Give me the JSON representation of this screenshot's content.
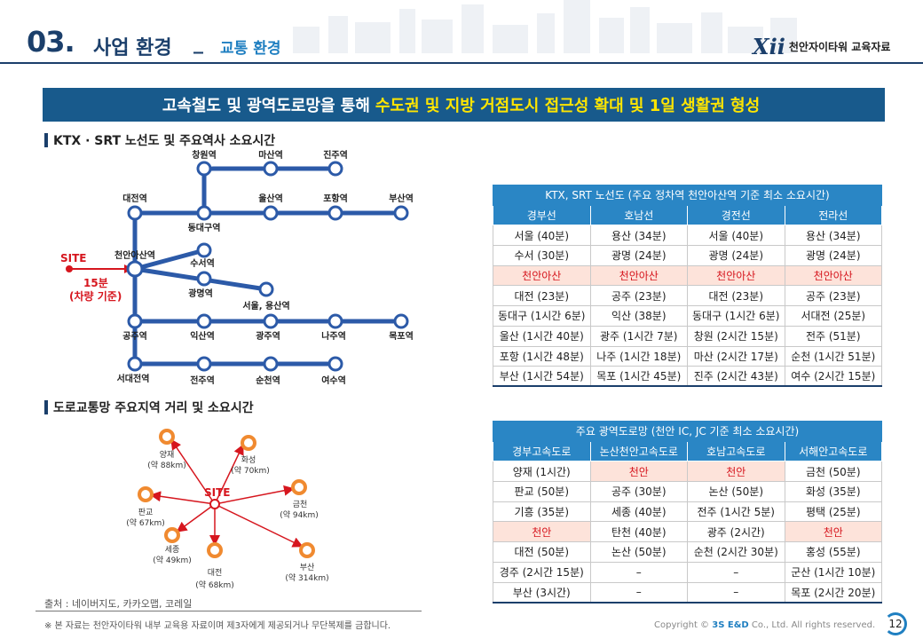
{
  "header": {
    "section_no": "03.",
    "title": "사업 환경",
    "separator": "_",
    "subtitle": "교통 환경",
    "logo_mark": "Xii",
    "logo_text": "천안자이타워 교육자료"
  },
  "banner": {
    "part1": "고속철도 및 광역도로망을 통해",
    "highlight": "수도권 및 지방 거점도시 접근성 확대 및 1일 생활권 형성"
  },
  "rail_section": {
    "heading": "KTX · SRT 노선도 및 주요역사 소요시간"
  },
  "road_section": {
    "heading": "도로교통망 주요지역 거리 및 소요시간"
  },
  "rail_map": {
    "site_label": "SITE",
    "site_note_1": "15분",
    "site_note_2": "(차량 기준)",
    "stations": {
      "changwon": "창원역",
      "masan": "마산역",
      "jinju": "진주역",
      "daejeon": "대전역",
      "ulsan": "울산역",
      "pohang": "포항역",
      "busan": "부산역",
      "dongdaegu": "동대구역",
      "cheonan_asan": "천안아산역",
      "suseo": "수서역",
      "gwangmyeong": "광명역",
      "seoul_yongsan": "서울, 용산역",
      "gongju": "공주역",
      "iksan": "익산역",
      "gwangju": "광주역",
      "naju": "나주역",
      "mokpo": "목포역",
      "seodaejeon": "서대전역",
      "jeonju": "전주역",
      "suncheon": "순천역",
      "yeosu": "여수역"
    },
    "colors": {
      "line": "#2c5aa8",
      "site": "#d6161e"
    }
  },
  "road_map": {
    "site_label": "SITE",
    "places": [
      {
        "name": "양재",
        "dist": "(약 88km)"
      },
      {
        "name": "화성",
        "dist": "(약 70km)"
      },
      {
        "name": "금천",
        "dist": "(약 94km)"
      },
      {
        "name": "판교",
        "dist": "(약 67km)"
      },
      {
        "name": "세종",
        "dist": "(약 49km)"
      },
      {
        "name": "대전",
        "dist": "(약 68km)"
      },
      {
        "name": "부산",
        "dist": "(약 314km)"
      }
    ],
    "colors": {
      "arrow": "#d6161e",
      "node": "#f08a30"
    }
  },
  "rail_table": {
    "title": "KTX, SRT 노선도 (주요 정차역 천안아산역 기준 최소 소요시간)",
    "columns": [
      "경부선",
      "호남선",
      "경전선",
      "전라선"
    ],
    "rows": [
      {
        "cells": [
          "서울 (40분)",
          "용산 (34분)",
          "서울 (40분)",
          "용산 (34분)"
        ],
        "red": false
      },
      {
        "cells": [
          "수서 (30분)",
          "광명 (24분)",
          "광명 (24분)",
          "광명 (24분)"
        ],
        "red": false
      },
      {
        "cells": [
          "천안아산",
          "천안아산",
          "천안아산",
          "천안아산"
        ],
        "red": true
      },
      {
        "cells": [
          "대전 (23분)",
          "공주 (23분)",
          "대전 (23분)",
          "공주 (23분)"
        ],
        "red": false
      },
      {
        "cells": [
          "동대구 (1시간 6분)",
          "익산 (38분)",
          "동대구 (1시간 6분)",
          "서대전 (25분)"
        ],
        "red": false
      },
      {
        "cells": [
          "울산 (1시간 40분)",
          "광주 (1시간 7분)",
          "창원 (2시간 15분)",
          "전주 (51분)"
        ],
        "red": false
      },
      {
        "cells": [
          "포항 (1시간 48분)",
          "나주 (1시간 18분)",
          "마산 (2시간 17분)",
          "순천 (1시간 51분)"
        ],
        "red": false
      },
      {
        "cells": [
          "부산 (1시간 54분)",
          "목포 (1시간 45분)",
          "진주 (2시간 43분)",
          "여수 (2시간 15분)"
        ],
        "red": false
      }
    ]
  },
  "road_table": {
    "title": "주요 광역도로망 (천안 IC, JC 기준 최소 소요시간)",
    "columns": [
      "경부고속도로",
      "논산천안고속도로",
      "호남고속도로",
      "서해안고속도로"
    ],
    "rows": [
      {
        "cells": [
          "양재 (1시간)",
          "천안",
          "천안",
          "금천 (50분)"
        ],
        "red": [
          false,
          true,
          true,
          false
        ]
      },
      {
        "cells": [
          "판교 (50분)",
          "공주 (30분)",
          "논산 (50분)",
          "화성 (35분)"
        ],
        "red": [
          false,
          false,
          false,
          false
        ]
      },
      {
        "cells": [
          "기흥 (35분)",
          "세종 (40분)",
          "전주 (1시간 5분)",
          "평택 (25분)"
        ],
        "red": [
          false,
          false,
          false,
          false
        ]
      },
      {
        "cells": [
          "천안",
          "탄천 (40분)",
          "광주 (2시간)",
          "천안"
        ],
        "red": [
          true,
          false,
          false,
          true
        ]
      },
      {
        "cells": [
          "대전 (50분)",
          "논산 (50분)",
          "순천 (2시간 30분)",
          "홍성 (55분)"
        ],
        "red": [
          false,
          false,
          false,
          false
        ]
      },
      {
        "cells": [
          "경주 (2시간 15분)",
          "–",
          "–",
          "군산 (1시간 10분)"
        ],
        "red": [
          false,
          false,
          false,
          false
        ]
      },
      {
        "cells": [
          "부산 (3시간)",
          "–",
          "–",
          "목포 (2시간 20분)"
        ],
        "red": [
          false,
          false,
          false,
          false
        ]
      }
    ]
  },
  "footer": {
    "source": "출처 : 네이버지도, 카카오맵, 코레일",
    "disclaimer": "※ 본 자료는 천안자이타워 내부 교육용 자료이며 제3자에게 제공되거나 무단복제를 금합니다.",
    "copyright_prefix": "Copyright ©",
    "copyright_brand": "3S E&D",
    "copyright_suffix": "Co., Ltd. All rights reserved.",
    "page": "12"
  }
}
